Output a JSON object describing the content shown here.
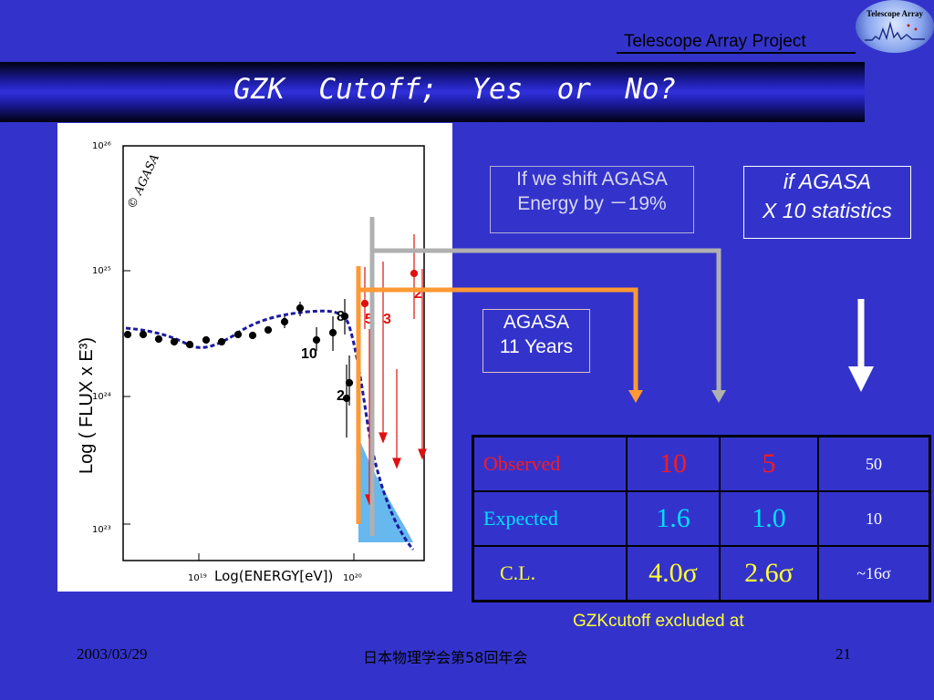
{
  "header": {
    "project_label": "Telescope Array Project",
    "logo_text": "Telescope Array",
    "title": "GZK  Cutoff;  Yes  or  No?"
  },
  "chart": {
    "watermark": "© AGASA",
    "ylabel": "Log ( FLUX x E³)",
    "xlabel": "Log(ENERGY[eV])",
    "y_ticks": [
      "10²⁶",
      "10²⁵",
      "10²⁴",
      "10²³"
    ],
    "x_ticks": [
      "10¹⁹",
      "10²⁰"
    ],
    "event_counts": [
      "8",
      "10",
      "2",
      "5",
      "3",
      "2"
    ]
  },
  "notes": {
    "shift_line1": "If we shift AGASA",
    "shift_line2": "Energy by  －19%",
    "stats_line1": "if AGASA",
    "stats_line2": "X 10 statistics",
    "agasa_line1": "AGASA",
    "agasa_line2": "11 Years"
  },
  "table": {
    "rows": [
      {
        "label": "Observed",
        "a": "10",
        "b": "5",
        "c": "50"
      },
      {
        "label": "Expected",
        "a": "1.6",
        "b": "1.0",
        "c": "10"
      },
      {
        "label": "C.L.",
        "a": "4.0σ",
        "b": "2.6σ",
        "c": "~16σ"
      }
    ]
  },
  "caption": "GZKcutoff excluded at",
  "footer": {
    "date": "2003/03/29",
    "event": "日本物理学会第58回年会",
    "page": "21"
  },
  "colors": {
    "background": "#3333cc",
    "orange_line": "#ff9933",
    "gray_line": "#b0b0b0",
    "model_curve": "#1a1aa0",
    "fill": "#66b8ee",
    "data_red": "#e01010"
  }
}
